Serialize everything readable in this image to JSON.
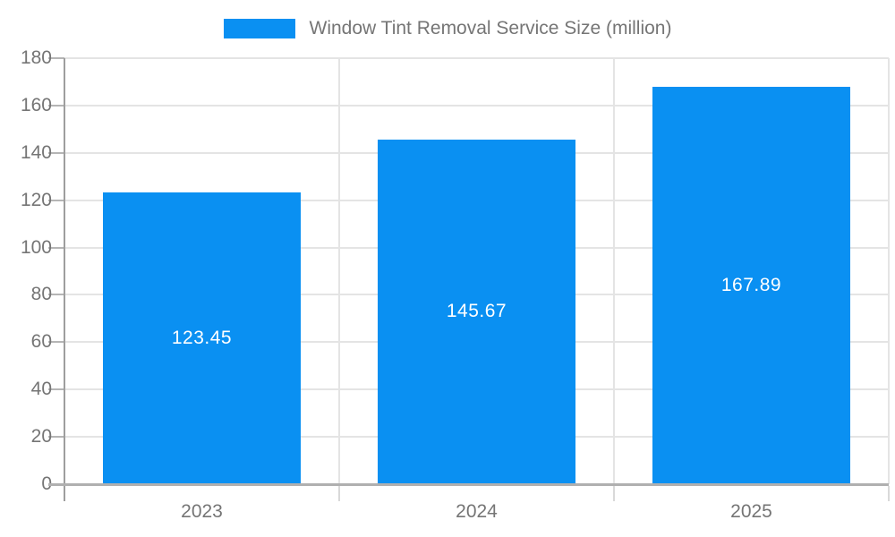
{
  "chart_data": {
    "type": "bar",
    "title": "Window Tint Removal Service Size (million)",
    "categories": [
      "2023",
      "2024",
      "2025"
    ],
    "values": [
      123.45,
      145.67,
      167.89
    ],
    "value_labels": [
      "123.45",
      "145.67",
      "167.89"
    ],
    "xlabel": "",
    "ylabel": "",
    "ylim": [
      0,
      180
    ],
    "ytick_step": 20,
    "yticks": [
      0,
      20,
      40,
      60,
      80,
      100,
      120,
      140,
      160,
      180
    ],
    "grid": true,
    "legend_position": "top",
    "legend_entries": [
      "Window Tint Removal Service Size (million)"
    ]
  },
  "colors": {
    "bar": "#0a90f2",
    "data_label": "#ffffff",
    "axis_text": "#757575",
    "legend_text": "#757575",
    "gridline": "#e4e4e4",
    "axis_line_left": "#9e9e9e",
    "axis_line_bottom": "#b0b0b0",
    "y_tick": "#b5b5b5",
    "x_tick": "#d9d9d9",
    "background": "#ffffff"
  }
}
